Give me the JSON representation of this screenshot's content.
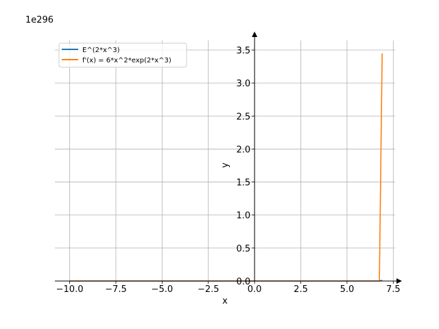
{
  "chart_data": {
    "type": "line",
    "offset_text": "1e296",
    "xlabel": "x",
    "ylabel": "y",
    "xlim": [
      -10.8,
      7.6
    ],
    "ylim": [
      0,
      3.6
    ],
    "x_ticks": [
      -10.0,
      -7.5,
      -5.0,
      -2.5,
      0.0,
      2.5,
      5.0,
      7.5
    ],
    "x_tick_labels": [
      "−10.0",
      "−7.5",
      "−5.0",
      "−2.5",
      "0.0",
      "2.5",
      "5.0",
      "7.5"
    ],
    "y_ticks": [
      0.0,
      0.5,
      1.0,
      1.5,
      2.0,
      2.5,
      3.0,
      3.5
    ],
    "y_tick_labels": [
      "0.0",
      "0.5",
      "1.0",
      "1.5",
      "2.0",
      "2.5",
      "3.0",
      "3.5"
    ],
    "grid": true,
    "legend_position": "top-left",
    "series": [
      {
        "name": "E^(2*x^3)",
        "color": "#1f77b4",
        "x": [
          -10.0,
          -5.0,
          0.0,
          5.0,
          6.5,
          6.75,
          6.9
        ],
        "y": [
          0,
          0,
          0,
          0,
          0,
          0,
          0.011
        ]
      },
      {
        "name": "f'(x) = 6*x^2*exp(2*x^3)",
        "color": "#ff7f0e",
        "x": [
          -10.0,
          -5.0,
          0.0,
          5.0,
          6.5,
          6.75,
          6.9
        ],
        "y": [
          0,
          0,
          0,
          0,
          0,
          0.0,
          3.45
        ]
      }
    ]
  }
}
